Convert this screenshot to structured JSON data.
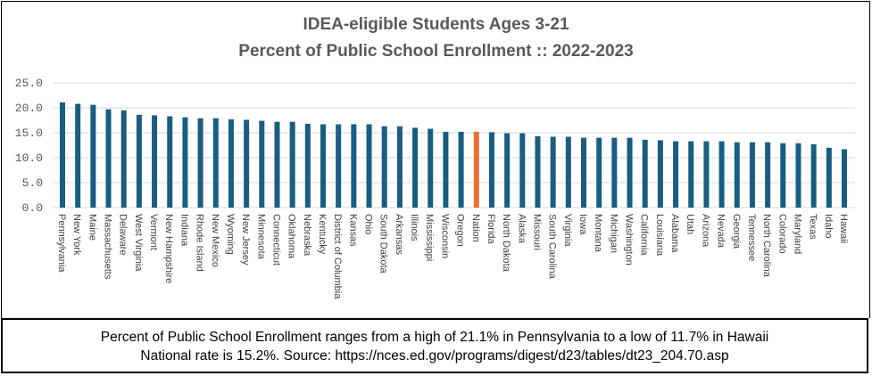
{
  "chart_data": {
    "type": "bar",
    "title": [
      "IDEA-eligible Students Ages 3-21",
      "Percent of Public School Enrollment :: 2022-2023"
    ],
    "xlabel": "",
    "ylabel": "",
    "ylim": [
      0,
      25
    ],
    "yticks": [
      "0.0",
      "5.0",
      "10.0",
      "15.0",
      "20.0",
      "25.0"
    ],
    "grid": true,
    "categories": [
      "Pennsylvania",
      "New York",
      "Maine",
      "Massachusetts",
      "Delaware",
      "West Virginia",
      "Vermont",
      "New Hampshire",
      "Indiana",
      "Rhode Island",
      "New Mexico",
      "Wyoming",
      "New Jersey",
      "Minnesota",
      "Connecticut",
      "Oklahoma",
      "Nebraska",
      "Kentucky",
      "District of Columbia",
      "Kansas",
      "Ohio",
      "South Dakota",
      "Arkansas",
      "Illinois",
      "Mississippi",
      "Wisconsin",
      "Oregon",
      "Nation",
      "Florida",
      "North Dakota",
      "Alaska",
      "Missouri",
      "South Carolina",
      "Virginia",
      "Iowa",
      "Montana",
      "Michigan",
      "Washington",
      "California",
      "Louisiana",
      "Alabama",
      "Utah",
      "Arizona",
      "Nevada",
      "Georgia",
      "Tennessee",
      "North Carolina",
      "Colorado",
      "Maryland",
      "Texas",
      "Idaho",
      "Hawaii"
    ],
    "values": [
      21.1,
      20.8,
      20.6,
      19.7,
      19.5,
      18.6,
      18.5,
      18.3,
      18.1,
      17.9,
      17.9,
      17.7,
      17.6,
      17.4,
      17.2,
      17.2,
      16.8,
      16.7,
      16.7,
      16.7,
      16.7,
      16.3,
      16.3,
      16.0,
      15.8,
      15.2,
      15.2,
      15.2,
      15.1,
      14.9,
      14.9,
      14.3,
      14.2,
      14.2,
      14.0,
      14.0,
      14.0,
      14.0,
      13.6,
      13.5,
      13.3,
      13.3,
      13.3,
      13.3,
      13.1,
      13.1,
      13.1,
      12.9,
      12.9,
      12.7,
      12.0,
      11.7
    ],
    "highlight": "Nation"
  },
  "colors": {
    "bar": "#175e80",
    "highlight": "#e97132",
    "grid": "#d9d9d9"
  },
  "footer": {
    "line1": "Percent of Public School Enrollment ranges from a high of 21.1% in Pennsylvania to a low of 11.7% in Hawaii",
    "line2": "National rate is 15.2%. Source: https://nces.ed.gov/programs/digest/d23/tables/dt23_204.70.asp"
  }
}
